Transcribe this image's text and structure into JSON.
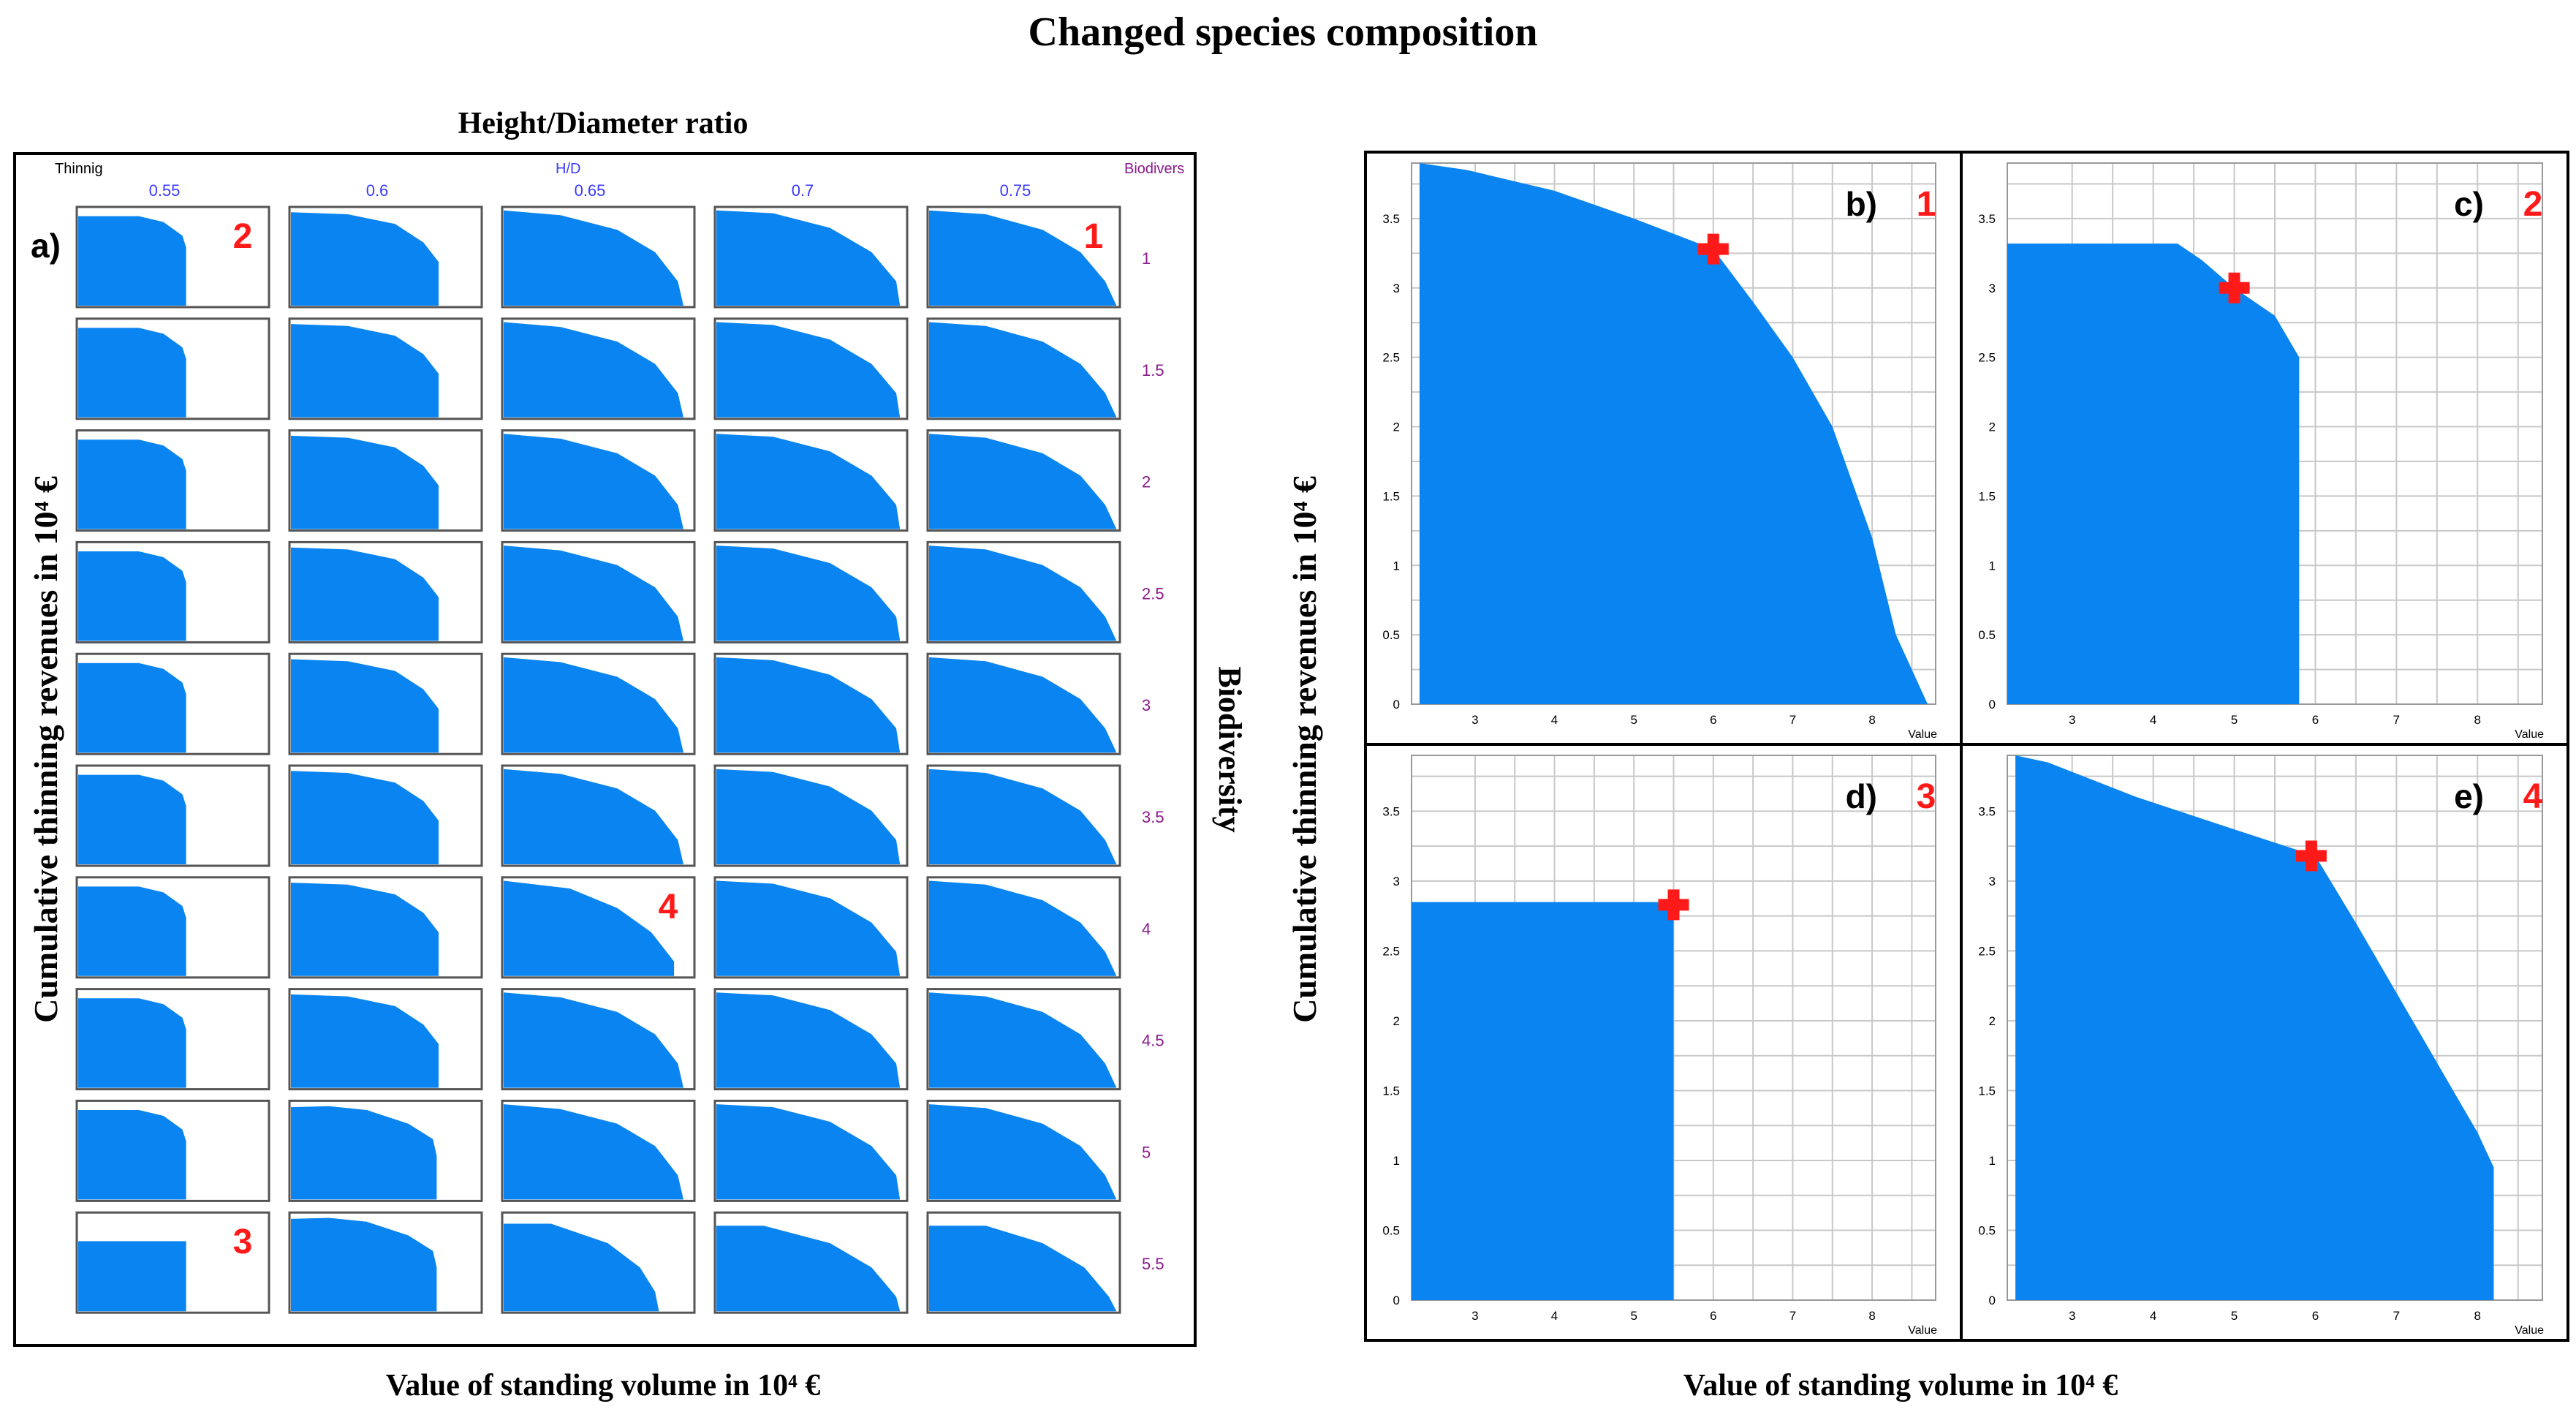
{
  "figure": {
    "title": "Changed species composition",
    "colors": {
      "fill": "#0a84f0",
      "marker": "#ff1a1a",
      "label_red": "#ff1a1a",
      "grid": "#c8c8c8",
      "hd_blue": "#3a3aff",
      "biodiv_purple": "#8b1a8b"
    }
  },
  "panel_a": {
    "label": "a)",
    "top_title": "Height/Diameter ratio",
    "corner_left": "Thinnig",
    "corner_mid": "H/D",
    "corner_right": "Biodivers",
    "hd_values": [
      "0.55",
      "0.6",
      "0.65",
      "0.7",
      "0.75"
    ],
    "biodiversity_values": [
      "1",
      "1.5",
      "2",
      "2.5",
      "3",
      "3.5",
      "4",
      "4.5",
      "5",
      "5.5"
    ],
    "ylabel": "Cumulative thinning revenues in 10⁴ €",
    "xlabel": "Value of standing volume in 10⁴ €",
    "right_label": "Biodiversity",
    "callouts": [
      {
        "text": "1",
        "row": 0,
        "col": 4
      },
      {
        "text": "2",
        "row": 0,
        "col": 0
      },
      {
        "text": "3",
        "row": 9,
        "col": 0
      },
      {
        "text": "4",
        "row": 6,
        "col": 2
      }
    ]
  },
  "right_panels": {
    "ylabel": "Cumulative thinning revenues in 10⁴ €",
    "xlabel": "Value of standing volume in 10⁴ €"
  },
  "chart_data": [
    {
      "type": "area",
      "panel": "b)",
      "callout": "1",
      "title": "",
      "xlabel": "Value",
      "ylabel": "",
      "xlim": [
        2.2,
        8.8
      ],
      "ylim": [
        0,
        3.9
      ],
      "xticks": [
        "3",
        "4",
        "5",
        "6",
        "7",
        "8"
      ],
      "yticks": [
        "0",
        "0.5",
        "1",
        "1.5",
        "2",
        "2.5",
        "3",
        "3.5"
      ],
      "frontier": [
        [
          2.3,
          3.9
        ],
        [
          2.9,
          3.85
        ],
        [
          4.0,
          3.7
        ],
        [
          5.0,
          3.5
        ],
        [
          6.0,
          3.28
        ],
        [
          6.5,
          2.9
        ],
        [
          7.0,
          2.5
        ],
        [
          7.5,
          2.0
        ],
        [
          8.0,
          1.2
        ],
        [
          8.3,
          0.5
        ],
        [
          8.7,
          0
        ]
      ],
      "selected_point": [
        6.0,
        3.28
      ]
    },
    {
      "type": "area",
      "panel": "c)",
      "callout": "2",
      "title": "",
      "xlabel": "Value",
      "ylabel": "",
      "xlim": [
        2.2,
        8.8
      ],
      "ylim": [
        0,
        3.9
      ],
      "xticks": [
        "3",
        "4",
        "5",
        "6",
        "7",
        "8"
      ],
      "yticks": [
        "0",
        "0.5",
        "1",
        "1.5",
        "2",
        "2.5",
        "3",
        "3.5"
      ],
      "frontier": [
        [
          2.2,
          3.32
        ],
        [
          4.3,
          3.32
        ],
        [
          4.6,
          3.2
        ],
        [
          5.0,
          3.0
        ],
        [
          5.5,
          2.8
        ],
        [
          5.8,
          2.5
        ],
        [
          5.8,
          0
        ]
      ],
      "selected_point": [
        5.0,
        3.0
      ]
    },
    {
      "type": "area",
      "panel": "d)",
      "callout": "3",
      "title": "",
      "xlabel": "Value",
      "ylabel": "",
      "xlim": [
        2.2,
        8.8
      ],
      "ylim": [
        0,
        3.9
      ],
      "xticks": [
        "3",
        "4",
        "5",
        "6",
        "7",
        "8"
      ],
      "yticks": [
        "0",
        "0.5",
        "1",
        "1.5",
        "2",
        "2.5",
        "3",
        "3.5"
      ],
      "frontier": [
        [
          2.2,
          2.85
        ],
        [
          5.5,
          2.85
        ],
        [
          5.5,
          0
        ]
      ],
      "selected_point": [
        5.5,
        2.83
      ]
    },
    {
      "type": "area",
      "panel": "e)",
      "callout": "4",
      "title": "",
      "xlabel": "Value",
      "ylabel": "",
      "xlim": [
        2.2,
        8.8
      ],
      "ylim": [
        0,
        3.9
      ],
      "xticks": [
        "3",
        "4",
        "5",
        "6",
        "7",
        "8"
      ],
      "yticks": [
        "0",
        "0.5",
        "1",
        "1.5",
        "2",
        "2.5",
        "3",
        "3.5"
      ],
      "frontier": [
        [
          2.3,
          3.9
        ],
        [
          2.7,
          3.85
        ],
        [
          3.8,
          3.6
        ],
        [
          5.0,
          3.37
        ],
        [
          6.0,
          3.18
        ],
        [
          6.5,
          2.7
        ],
        [
          7.0,
          2.2
        ],
        [
          7.5,
          1.7
        ],
        [
          8.0,
          1.2
        ],
        [
          8.2,
          0.95
        ],
        [
          8.2,
          0
        ]
      ],
      "selected_point": [
        5.95,
        3.18
      ]
    }
  ]
}
